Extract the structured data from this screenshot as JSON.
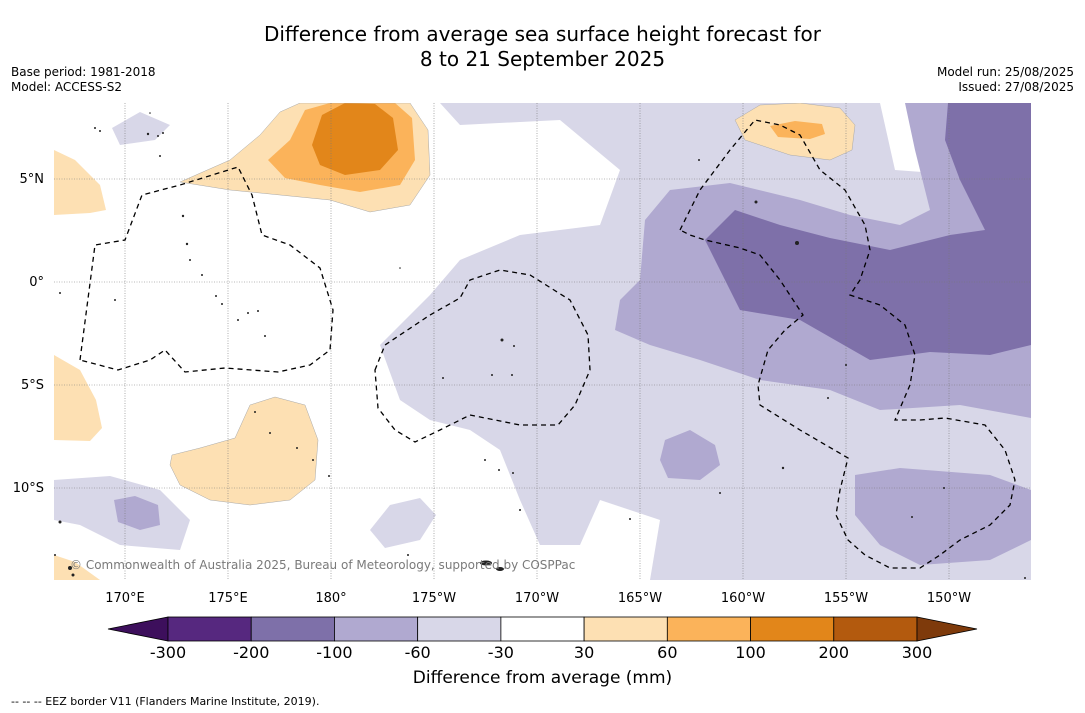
{
  "title_line1": "Difference from average sea surface height forecast for",
  "title_line2": "8 to 21 September 2025",
  "meta_left": [
    "Base period: 1981-2018",
    "Model: ACCESS-S2"
  ],
  "meta_right": [
    "Model run: 25/08/2025",
    "Issued: 27/08/2025"
  ],
  "lat_labels": [
    "5°N",
    "0°",
    "5°S",
    "10°S"
  ],
  "lon_labels": [
    "170°E",
    "175°E",
    "180°",
    "175°W",
    "170°W",
    "165°W",
    "160°W",
    "155°W",
    "150°W"
  ],
  "copyright": "© Commonwealth of Australia 2025, Bureau of Meteorology, supported by COSPPac",
  "colorbar": {
    "ticks": [
      "-300",
      "-200",
      "-100",
      "-60",
      "-30",
      "30",
      "60",
      "100",
      "200",
      "300"
    ],
    "colors": [
      "#3d0f5c",
      "#56287f",
      "#7e70a9",
      "#b0a9d0",
      "#d8d7e8",
      "#ffffff",
      "#fde0b3",
      "#fbb35a",
      "#e2861a",
      "#b35a0e",
      "#7e3a0b"
    ],
    "label": "Difference from average (mm)"
  },
  "footnote": "--  --  -- EEZ border V11 (Flanders Marine Institute, 2019)."
}
